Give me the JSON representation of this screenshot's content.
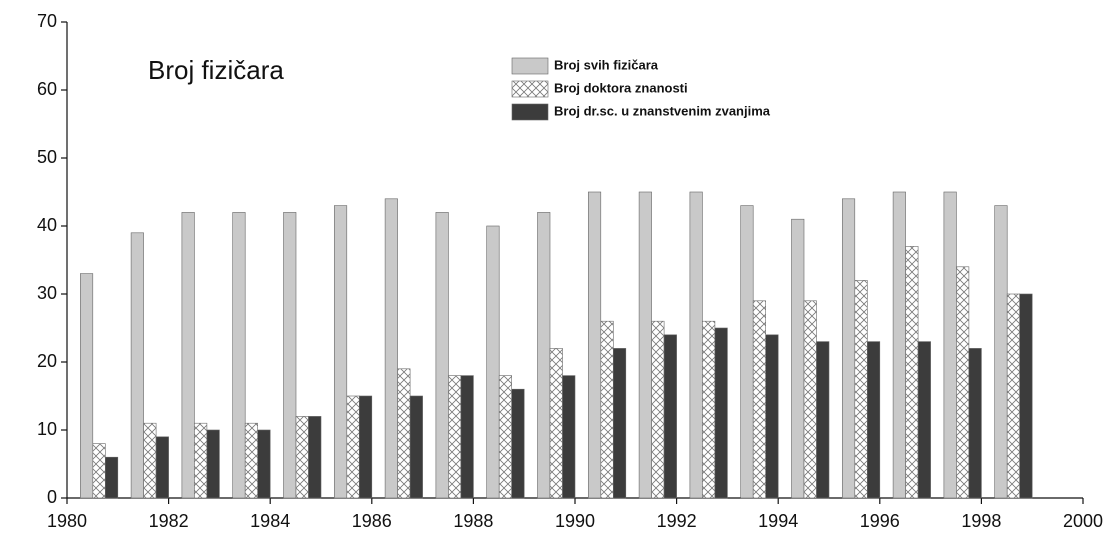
{
  "chart_data": {
    "type": "bar",
    "title": "Broj fizičara",
    "x": [
      1981,
      1982,
      1983,
      1984,
      1985,
      1986,
      1987,
      1988,
      1989,
      1990,
      1991,
      1992,
      1993,
      1994,
      1995,
      1996,
      1997,
      1998,
      1999
    ],
    "series": [
      {
        "name": "Broj svih fizičara",
        "color": "#c9c9c9",
        "values": [
          33,
          39,
          42,
          42,
          42,
          43,
          44,
          42,
          40,
          42,
          45,
          45,
          45,
          43,
          41,
          44,
          45,
          45,
          43
        ]
      },
      {
        "name": "Broj doktora znanosti",
        "color": "#ffffff",
        "pattern": "crosshatch",
        "values": [
          8,
          11,
          11,
          11,
          12,
          15,
          19,
          18,
          18,
          22,
          26,
          26,
          26,
          29,
          29,
          32,
          37,
          34,
          30
        ]
      },
      {
        "name": "Broj dr.sc. u znanstvenim zvanjima",
        "color": "#3c3c3c",
        "values": [
          6,
          9,
          10,
          10,
          12,
          15,
          15,
          18,
          16,
          18,
          22,
          24,
          25,
          24,
          23,
          23,
          23,
          22,
          30
        ]
      }
    ],
    "xlim": [
      1980,
      2000
    ],
    "xticks": [
      1980,
      1982,
      1984,
      1986,
      1988,
      1990,
      1992,
      1994,
      1996,
      1998,
      2000
    ],
    "ylim": [
      0,
      70
    ],
    "yticks": [
      0,
      10,
      20,
      30,
      40,
      50,
      60,
      70
    ],
    "grid": false
  }
}
